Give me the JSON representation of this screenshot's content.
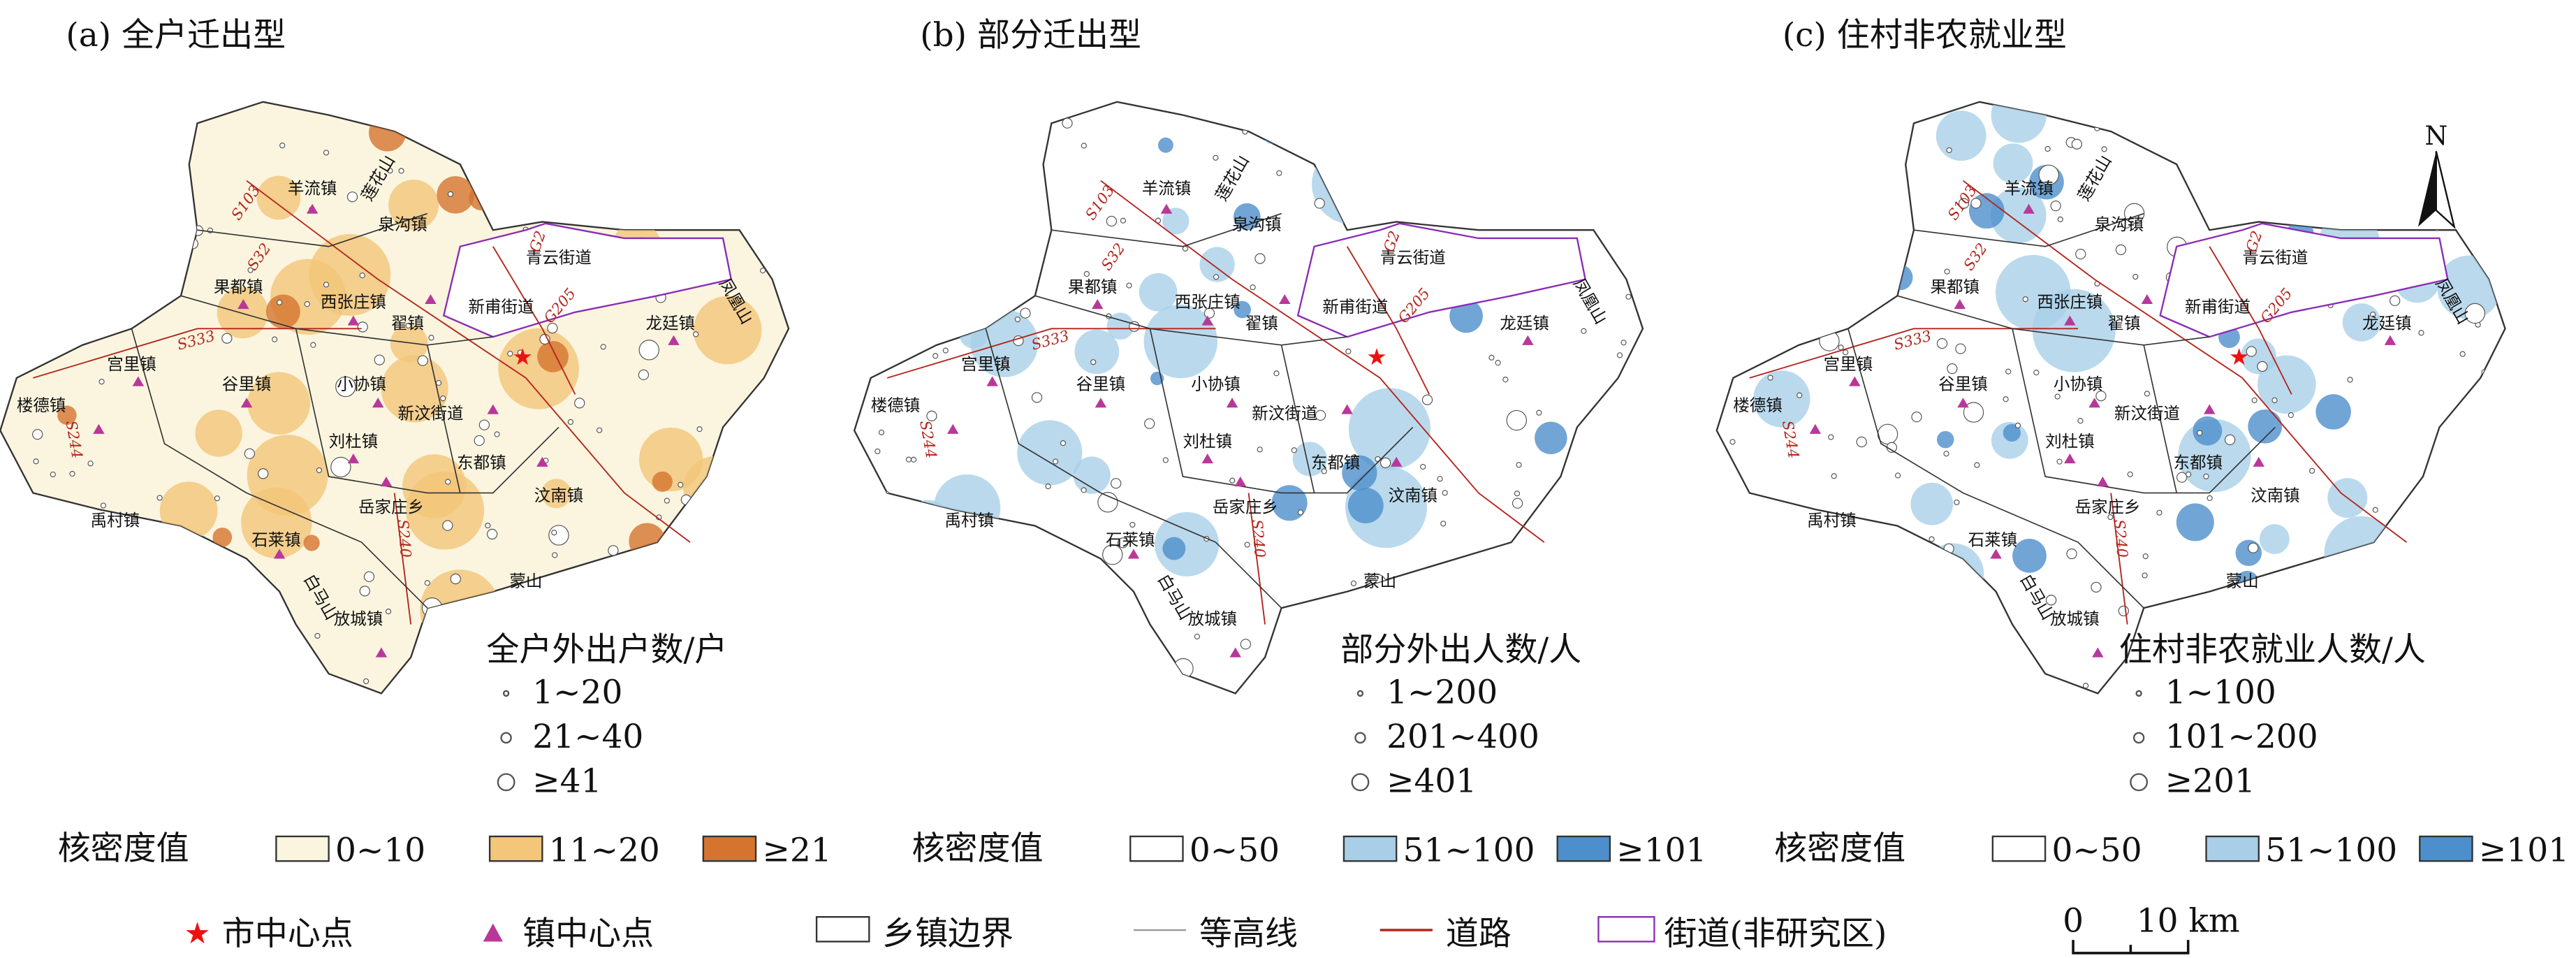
{
  "panels": [
    {
      "title": "(a) 全户迁出型",
      "size_legend_title": "全户外出户数/户",
      "size_classes": [
        "1~20",
        "21~40",
        "≥41"
      ],
      "density_label": "核密度值",
      "density_classes": [
        "0~10",
        "11~20",
        "≥21"
      ],
      "density_colors": [
        "#fbf5df",
        "#f3c679",
        "#d4742f"
      ]
    },
    {
      "title": "(b) 部分迁出型",
      "size_legend_title": "部分外出人数/人",
      "size_classes": [
        "1~200",
        "201~400",
        "≥401"
      ],
      "density_label": "核密度值",
      "density_classes": [
        "0~50",
        "51~100",
        "≥101"
      ],
      "density_colors": [
        "#ffffff",
        "#a9cfe8",
        "#4d8fcc"
      ]
    },
    {
      "title": "(c) 住村非农就业型",
      "size_legend_title": "住村非农就业人数/人",
      "size_classes": [
        "1~100",
        "101~200",
        "≥201"
      ],
      "density_label": "核密度值",
      "density_classes": [
        "0~50",
        "51~100",
        "≥101"
      ],
      "density_colors": [
        "#ffffff",
        "#a9cfe8",
        "#4d8fcc"
      ]
    }
  ],
  "place_labels": [
    "羊流镇",
    "莲花山",
    "泉沟镇",
    "青云街道",
    "果都镇",
    "西张庄镇",
    "新甫街道",
    "翟镇",
    "龙廷镇",
    "凤凰山",
    "宫里镇",
    "谷里镇",
    "小协镇",
    "新汶街道",
    "楼德镇",
    "刘杜镇",
    "东都镇",
    "禹村镇",
    "汶南镇",
    "岳家庄乡",
    "石莱镇",
    "蒙山",
    "白马山",
    "放城镇"
  ],
  "road_labels": [
    "S103",
    "S32",
    "G2",
    "G205",
    "S333",
    "S244",
    "S240"
  ],
  "north": "N",
  "legend": {
    "items": [
      "市中心点",
      "镇中心点",
      "乡镇边界",
      "等高线",
      "道路",
      "街道(非研究区)"
    ],
    "scale": [
      "0",
      "10 km"
    ]
  }
}
